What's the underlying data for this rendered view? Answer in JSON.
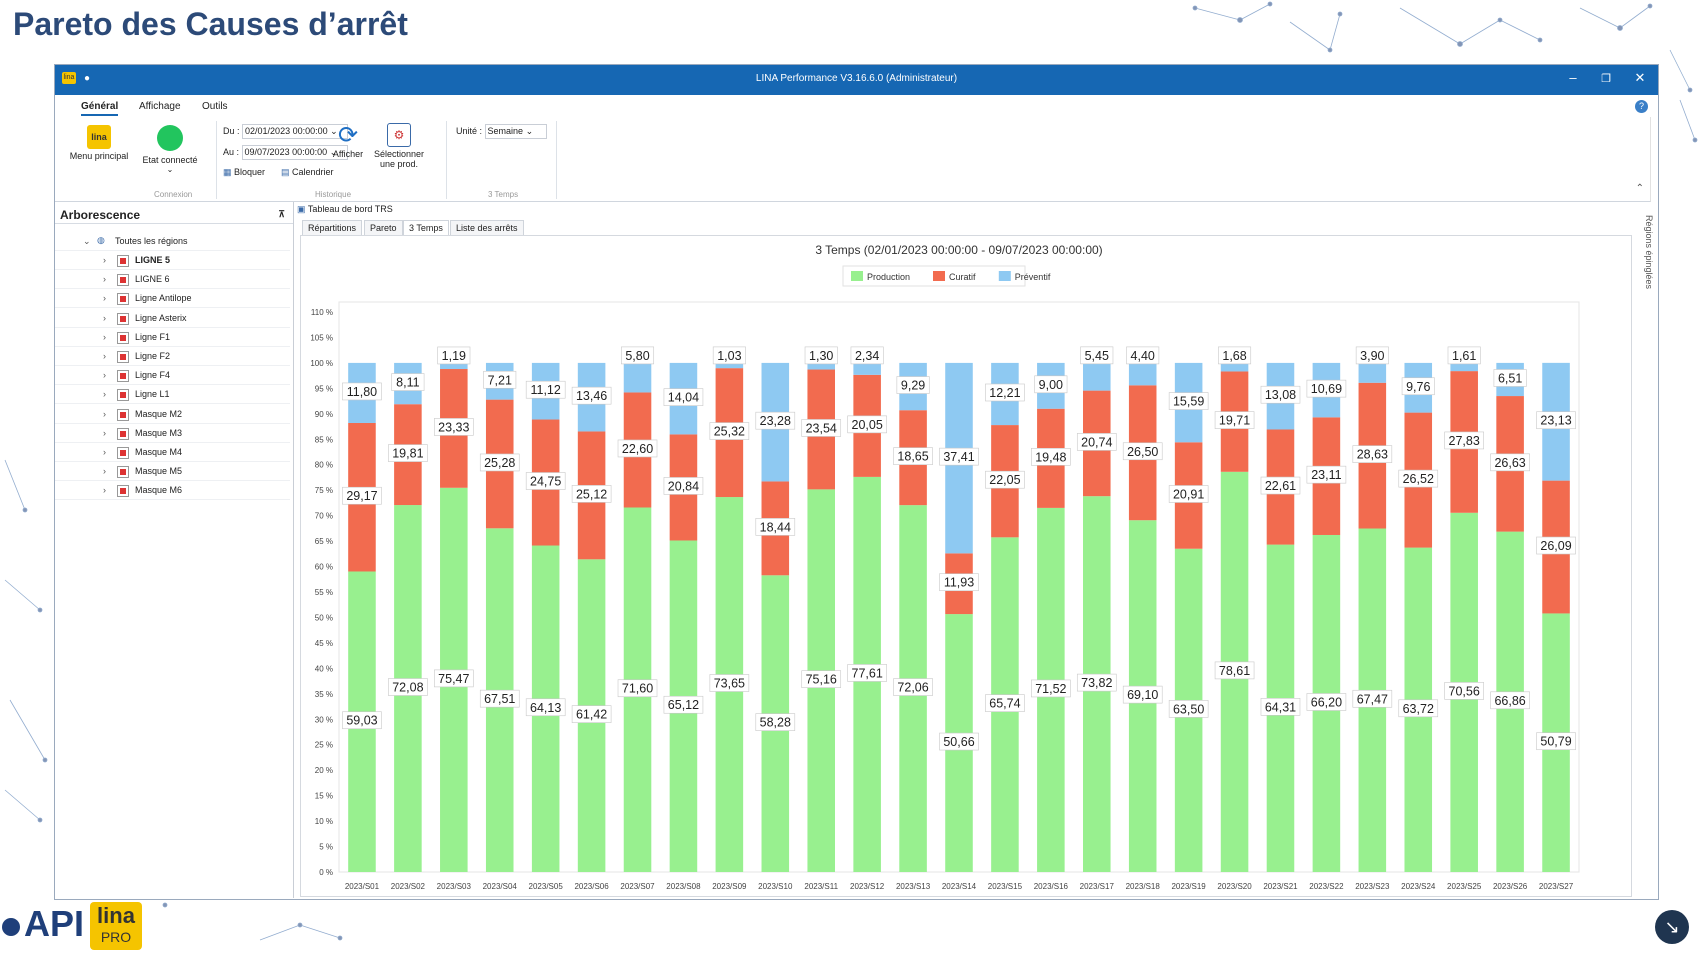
{
  "slide": {
    "title": "Pareto des Causes d’arrêt"
  },
  "window": {
    "title": "LINA Performance  V3.16.6.0  (Administrateur)",
    "app_icon_text": "lina"
  },
  "menu": {
    "tabs": [
      "Général",
      "Affichage",
      "Outils"
    ],
    "help_icon": "?"
  },
  "ribbon": {
    "menu_principal": "Menu principal",
    "etat_connecte": "Etat connecté",
    "connexion_group": "Connexion",
    "du_label": "Du :",
    "du_value": "02/01/2023 00:00:00",
    "au_label": "Au :",
    "au_value": "09/07/2023 00:00:00",
    "bloquer": "Bloquer",
    "calendrier": "Calendrier",
    "historique_group": "Historique",
    "afficher": "Afficher",
    "selectionner_1": "Sélectionner",
    "selectionner_2": "une prod.",
    "unite_label": "Unité :",
    "unite_value": "Semaine",
    "temps_group": "3 Temps"
  },
  "tree": {
    "title": "Arborescence",
    "root": "Toutes les régions",
    "items": [
      "LIGNE 5",
      "LIGNE 6",
      "Ligne Antilope",
      "Ligne Asterix",
      "Ligne F1",
      "Ligne F2",
      "Ligne F4",
      "Ligne L1",
      "Masque M2",
      "Masque M3",
      "Masque M4",
      "Masque M5",
      "Masque M6"
    ]
  },
  "main": {
    "doc_tab": "Tableau de bord TRS",
    "tabs": [
      "Répartitions",
      "Pareto",
      "3 Temps",
      "Liste des arrêts"
    ],
    "selected_tab": "3 Temps",
    "side_label": "Régions épinglées"
  },
  "chart_data": {
    "type": "bar",
    "stacked": true,
    "title": "3 Temps   (02/01/2023 00:00:00 - 09/07/2023 00:00:00)",
    "categories": [
      "2023/S01",
      "2023/S02",
      "2023/S03",
      "2023/S04",
      "2023/S05",
      "2023/S06",
      "2023/S07",
      "2023/S08",
      "2023/S09",
      "2023/S10",
      "2023/S11",
      "2023/S12",
      "2023/S13",
      "2023/S14",
      "2023/S15",
      "2023/S16",
      "2023/S17",
      "2023/S18",
      "2023/S19",
      "2023/S20",
      "2023/S21",
      "2023/S22",
      "2023/S23",
      "2023/S24",
      "2023/S25",
      "2023/S26",
      "2023/S27"
    ],
    "series": [
      {
        "name": "Production",
        "color": "#98f08f",
        "values": [
          59.03,
          72.08,
          75.47,
          67.51,
          64.13,
          61.42,
          71.6,
          65.12,
          73.65,
          58.28,
          75.16,
          77.61,
          72.06,
          50.66,
          65.74,
          71.52,
          73.82,
          69.1,
          63.5,
          78.61,
          64.31,
          66.2,
          67.47,
          63.72,
          70.56,
          66.86,
          50.79
        ]
      },
      {
        "name": "Curatif",
        "color": "#f26b4f",
        "values": [
          29.17,
          19.81,
          23.33,
          25.28,
          24.75,
          25.12,
          22.6,
          20.84,
          25.32,
          18.44,
          23.54,
          20.05,
          18.65,
          11.93,
          22.05,
          19.48,
          20.74,
          26.5,
          20.91,
          19.71,
          22.61,
          23.11,
          28.63,
          26.52,
          27.83,
          26.63,
          26.09
        ]
      },
      {
        "name": "Préventif",
        "color": "#8ec9f2",
        "values": [
          11.8,
          8.11,
          1.19,
          7.21,
          11.12,
          13.46,
          5.8,
          14.04,
          1.03,
          23.28,
          1.3,
          2.34,
          9.29,
          37.41,
          12.21,
          9.0,
          5.45,
          4.4,
          15.59,
          1.68,
          13.08,
          10.69,
          3.9,
          9.76,
          1.61,
          6.51,
          23.13
        ]
      }
    ],
    "value_labels": {
      "Production": [
        "59,03",
        "72,08",
        "75,47",
        "67,51",
        "64,13",
        "61,42",
        "71,60",
        "65,12",
        "73,65",
        "58,28",
        "75,16",
        "77,61",
        "72,06",
        "50,66",
        "65,74",
        "71,52",
        "73,82",
        "69,10",
        "63,50",
        "78,61",
        "64,31",
        "66,20",
        "67,47",
        "63,72",
        "70,56",
        "66,86",
        "50,79"
      ],
      "Curatif": [
        "29,17",
        "19,81",
        "23,33",
        "25,28",
        "24,75",
        "25,12",
        "22,60",
        "20,84",
        "25,32",
        "18,44",
        "23,54",
        "20,05",
        "18,65",
        "11,93",
        "22,05",
        "19,48",
        "20,74",
        "26,50",
        "20,91",
        "19,71",
        "22,61",
        "23,11",
        "28,63",
        "26,52",
        "27,83",
        "26,63",
        "26,09"
      ],
      "Préventif": [
        "11,80",
        "8,11",
        "1,19",
        "7,21",
        "11,12",
        "13,46",
        "5,80",
        "14,04",
        "1,03",
        "23,28",
        "1,30",
        "2,34",
        "9,29",
        "37,41",
        "12,21",
        "9,00",
        "5,45",
        "4,40",
        "15,59",
        "1,68",
        "13,08",
        "10,69",
        "3,90",
        "9,76",
        "1,61",
        "6,51",
        "23,13"
      ]
    },
    "ylim": [
      0,
      110
    ],
    "yticks": [
      "0 %",
      "5 %",
      "10 %",
      "15 %",
      "20 %",
      "25 %",
      "30 %",
      "35 %",
      "40 %",
      "45 %",
      "50 %",
      "55 %",
      "60 %",
      "65 %",
      "70 %",
      "75 %",
      "80 %",
      "85 %",
      "90 %",
      "95 %",
      "100 %",
      "105 %",
      "110 %"
    ],
    "grid": false,
    "legend": "top-center"
  },
  "branding": {
    "api": "API",
    "lina": "lina",
    "pro": "PRO"
  }
}
